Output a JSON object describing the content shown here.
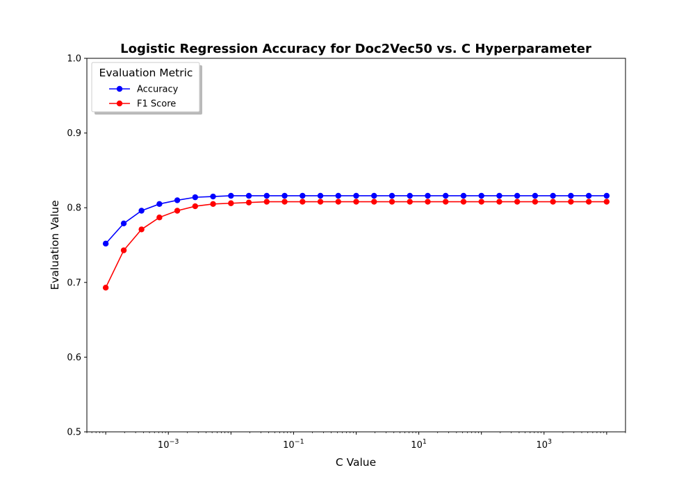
{
  "chart_data": {
    "type": "line",
    "title": "Logistic Regression Accuracy for Doc2Vec50 vs. C Hyperparameter",
    "xlabel": "C Value",
    "ylabel": "Evaluation Value",
    "xscale": "log",
    "xlim": [
      5e-05,
      20000
    ],
    "ylim": [
      0.5,
      1.0
    ],
    "grid": false,
    "x_ticks": [
      {
        "value": 0.001,
        "base": "10",
        "exp": "−3"
      },
      {
        "value": 0.1,
        "base": "10",
        "exp": "−1"
      },
      {
        "value": 10,
        "base": "10",
        "exp": "1"
      },
      {
        "value": 1000,
        "base": "10",
        "exp": "3"
      }
    ],
    "y_ticks": [
      "0.5",
      "0.6",
      "0.7",
      "0.8",
      "0.9",
      "1.0"
    ],
    "legend": {
      "title": "Evaluation Metric",
      "placement": "top-left"
    },
    "x": [
      0.0001,
      0.000194,
      0.000373,
      0.00072,
      0.001389,
      0.002683,
      0.005179,
      0.01,
      0.019307,
      0.037276,
      0.071969,
      0.13895,
      0.26827,
      0.517947,
      1.0,
      1.930698,
      3.727594,
      7.196857,
      13.894955,
      26.826958,
      51.794747,
      100.0,
      193.069773,
      372.759372,
      719.685673,
      1389.495494,
      2682.695795,
      5179.474679,
      10000.0
    ],
    "series": [
      {
        "name": "Accuracy",
        "color": "#0000ff",
        "values": [
          0.752,
          0.779,
          0.796,
          0.805,
          0.81,
          0.814,
          0.815,
          0.816,
          0.816,
          0.816,
          0.816,
          0.816,
          0.816,
          0.816,
          0.816,
          0.816,
          0.816,
          0.816,
          0.816,
          0.816,
          0.816,
          0.816,
          0.816,
          0.816,
          0.816,
          0.816,
          0.816,
          0.816,
          0.816
        ]
      },
      {
        "name": "F1 Score",
        "color": "#ff0000",
        "values": [
          0.693,
          0.743,
          0.771,
          0.787,
          0.796,
          0.802,
          0.805,
          0.806,
          0.807,
          0.808,
          0.808,
          0.808,
          0.808,
          0.808,
          0.808,
          0.808,
          0.808,
          0.808,
          0.808,
          0.808,
          0.808,
          0.808,
          0.808,
          0.808,
          0.808,
          0.808,
          0.808,
          0.808,
          0.808
        ]
      }
    ]
  }
}
